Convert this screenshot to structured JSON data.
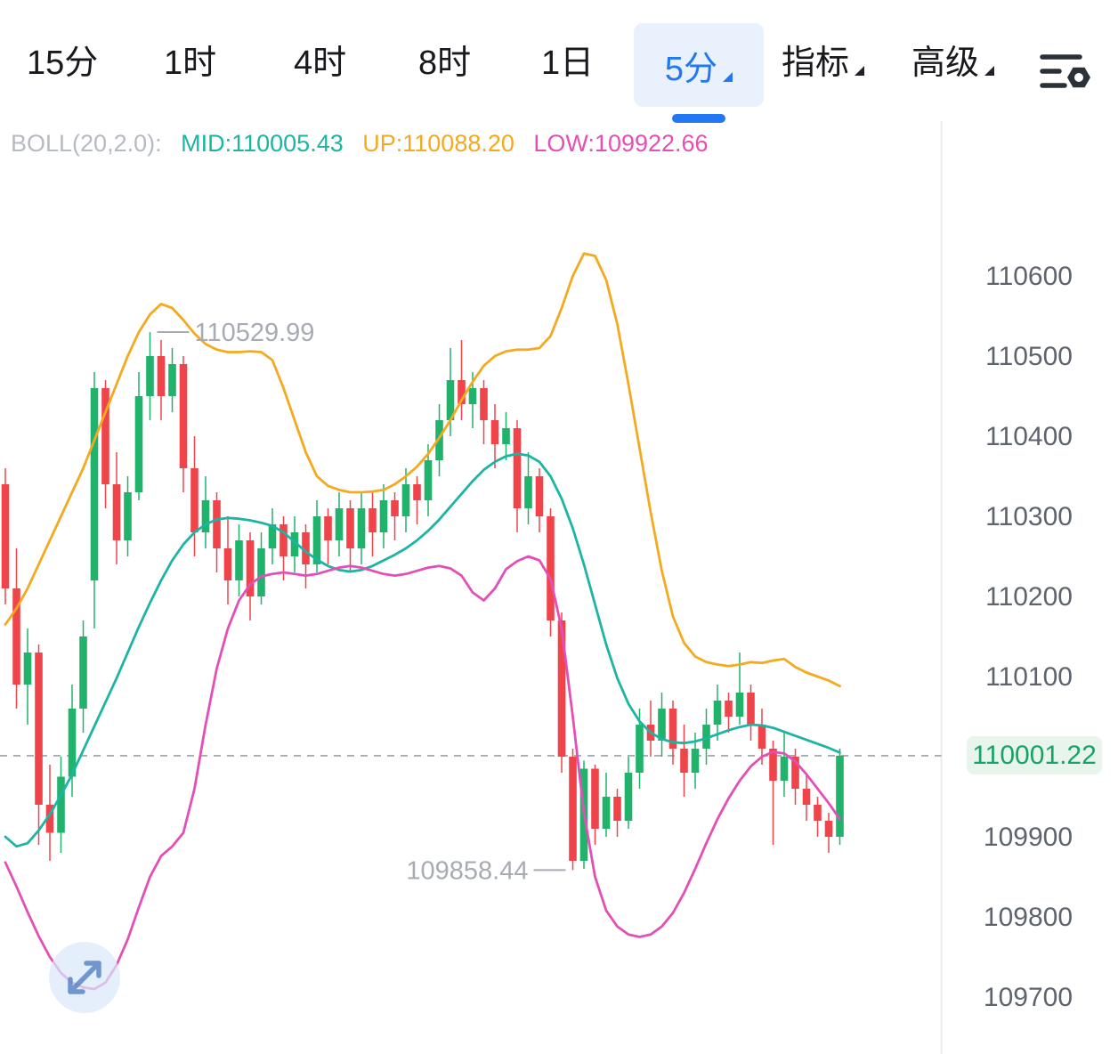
{
  "header": {
    "tabs": [
      {
        "id": "15m",
        "label": "15分",
        "selected": false
      },
      {
        "id": "1h",
        "label": "1时",
        "selected": false
      },
      {
        "id": "4h",
        "label": "4时",
        "selected": false
      },
      {
        "id": "8h",
        "label": "8时",
        "selected": false
      },
      {
        "id": "1d",
        "label": "1日",
        "selected": false
      },
      {
        "id": "5m",
        "label": "5分",
        "selected": true
      },
      {
        "id": "indicators",
        "label": "指标",
        "selected": false
      },
      {
        "id": "advanced",
        "label": "高级",
        "selected": false
      }
    ],
    "settings_icon": "chart-settings-icon"
  },
  "indicator_bar": {
    "boll_label": "BOLL(20,2.0):",
    "mid_label": "MID:110005.43",
    "up_label": "UP:110088.20",
    "low_label": "LOW:109922.66"
  },
  "last_price_badge": {
    "label": "110001.22"
  },
  "chart_data": {
    "type": "candlestick",
    "indicator": "BOLL(20,2.0)",
    "boll_values": {
      "mid": 110005.43,
      "up": 110088.2,
      "low": 109922.66
    },
    "last_price": {
      "text": "110001.22",
      "value": 110001.22
    },
    "high_annotation": {
      "text": "110529.99",
      "value": 110529.99,
      "candle_index": 13
    },
    "low_annotation": {
      "text": "109858.44",
      "value": 109858.44,
      "candle_index": 51
    },
    "y_ticks": [
      110600,
      110500,
      110400,
      110300,
      110200,
      110100,
      109900,
      109800,
      109700
    ],
    "ylim": [
      109650,
      110660
    ],
    "colors": {
      "up_candle": "#21b26c",
      "down_candle": "#ef454a",
      "band_up": "#f3aa1f",
      "band_mid": "#1cb5a3",
      "band_low": "#e44fb7",
      "dashed_line": "#9aa0a8",
      "annotation": "#a7acb4",
      "axis_label": "#5d646d",
      "separator": "#ececec",
      "badge_bg": "#e7f5ec",
      "badge_text": "#17a266"
    },
    "candles": [
      [
        110340,
        110360,
        110190,
        110210
      ],
      [
        110210,
        110260,
        110060,
        110090
      ],
      [
        110090,
        110160,
        110040,
        110130
      ],
      [
        110130,
        110140,
        109890,
        109940
      ],
      [
        109940,
        109990,
        109870,
        109905
      ],
      [
        109905,
        110000,
        109880,
        109975
      ],
      [
        109975,
        110090,
        109950,
        110060
      ],
      [
        110060,
        110170,
        110030,
        110150
      ],
      [
        110220,
        110480,
        110160,
        110460
      ],
      [
        110460,
        110470,
        110310,
        110340
      ],
      [
        110340,
        110380,
        110240,
        110270
      ],
      [
        110270,
        110350,
        110250,
        110330
      ],
      [
        110330,
        110480,
        110320,
        110450
      ],
      [
        110450,
        110529.99,
        110420,
        110500
      ],
      [
        110500,
        110520,
        110420,
        110450
      ],
      [
        110450,
        110510,
        110430,
        110490
      ],
      [
        110490,
        110500,
        110330,
        110360
      ],
      [
        110360,
        110400,
        110250,
        110280
      ],
      [
        110280,
        110350,
        110260,
        110320
      ],
      [
        110320,
        110330,
        110230,
        110260
      ],
      [
        110260,
        110300,
        110190,
        110220
      ],
      [
        110220,
        110290,
        110200,
        110270
      ],
      [
        110270,
        110280,
        110170,
        110200
      ],
      [
        110200,
        110280,
        110190,
        110260
      ],
      [
        110260,
        110310,
        110240,
        110290
      ],
      [
        110290,
        110300,
        110220,
        110250
      ],
      [
        110250,
        110300,
        110230,
        110280
      ],
      [
        110280,
        110290,
        110210,
        110240
      ],
      [
        110240,
        110320,
        110230,
        110300
      ],
      [
        110300,
        110310,
        110240,
        110270
      ],
      [
        110270,
        110330,
        110250,
        110310
      ],
      [
        110310,
        110320,
        110230,
        110260
      ],
      [
        110260,
        110330,
        110240,
        110310
      ],
      [
        110310,
        110330,
        110250,
        110280
      ],
      [
        110280,
        110340,
        110260,
        110320
      ],
      [
        110320,
        110330,
        110270,
        110300
      ],
      [
        110300,
        110360,
        110280,
        110340
      ],
      [
        110340,
        110350,
        110290,
        110320
      ],
      [
        110320,
        110390,
        110300,
        110370
      ],
      [
        110370,
        110440,
        110350,
        110420
      ],
      [
        110420,
        110510,
        110400,
        110470
      ],
      [
        110470,
        110520,
        110420,
        110440
      ],
      [
        110440,
        110480,
        110410,
        110460
      ],
      [
        110460,
        110470,
        110390,
        110420
      ],
      [
        110420,
        110440,
        110360,
        110390
      ],
      [
        110390,
        110430,
        110370,
        110410
      ],
      [
        110410,
        110420,
        110280,
        110310
      ],
      [
        110310,
        110380,
        110290,
        110350
      ],
      [
        110350,
        110360,
        110280,
        110300
      ],
      [
        110300,
        110310,
        110150,
        110170
      ],
      [
        110170,
        110180,
        109980,
        110000
      ],
      [
        110000,
        110010,
        109858.44,
        109870
      ],
      [
        109870,
        109995,
        109860,
        109985
      ],
      [
        109985,
        109990,
        109890,
        109910
      ],
      [
        109910,
        109980,
        109900,
        109950
      ],
      [
        109950,
        109960,
        109900,
        109920
      ],
      [
        109920,
        110000,
        109910,
        109980
      ],
      [
        109980,
        110060,
        109960,
        110040
      ],
      [
        110040,
        110070,
        110000,
        110020
      ],
      [
        110020,
        110080,
        110000,
        110060
      ],
      [
        110060,
        110070,
        109990,
        110010
      ],
      [
        110010,
        110040,
        109950,
        109980
      ],
      [
        109980,
        110030,
        109960,
        110010
      ],
      [
        110010,
        110060,
        109990,
        110040
      ],
      [
        110040,
        110090,
        110020,
        110070
      ],
      [
        110070,
        110080,
        110030,
        110050
      ],
      [
        110050,
        110130,
        110040,
        110080
      ],
      [
        110080,
        110090,
        110020,
        110040
      ],
      [
        110040,
        110060,
        109990,
        110010
      ],
      [
        110010,
        110020,
        109890,
        109970
      ],
      [
        109970,
        110030,
        109950,
        110000
      ],
      [
        110000,
        110010,
        109940,
        109960
      ],
      [
        109960,
        109980,
        109920,
        109940
      ],
      [
        109940,
        109950,
        109900,
        109920
      ],
      [
        109920,
        109930,
        109880,
        109900
      ],
      [
        109900,
        110010,
        109890,
        110001.22
      ]
    ],
    "bands": {
      "up": [
        110165,
        110185,
        110210,
        110240,
        110270,
        110300,
        110330,
        110360,
        110395,
        110430,
        110465,
        110500,
        110530,
        110552,
        110565,
        110560,
        110545,
        110528,
        110515,
        110508,
        110505,
        110505,
        110506,
        110505,
        110495,
        110460,
        110420,
        110380,
        110350,
        110338,
        110333,
        110330,
        110330,
        110331,
        110333,
        110340,
        110350,
        110362,
        110378,
        110398,
        110420,
        110445,
        110468,
        110488,
        110500,
        110506,
        110508,
        110508,
        110510,
        110525,
        110560,
        110600,
        110628,
        110625,
        110595,
        110540,
        110465,
        110385,
        110305,
        110232,
        110175,
        110142,
        110125,
        110118,
        110115,
        110113,
        110115,
        110118,
        110117,
        110120,
        110122,
        110112,
        110105,
        110100,
        110095,
        110088
      ],
      "mid": [
        109900,
        109888,
        109892,
        109908,
        109928,
        109952,
        109978,
        110008,
        110038,
        110068,
        110098,
        110130,
        110162,
        110192,
        110220,
        110245,
        110265,
        110280,
        110290,
        110296,
        110298,
        110297,
        110295,
        110292,
        110288,
        110280,
        110268,
        110256,
        110246,
        110238,
        110233,
        110231,
        110233,
        110238,
        110245,
        110252,
        110260,
        110270,
        110282,
        110296,
        110312,
        110328,
        110344,
        110358,
        110368,
        110375,
        110378,
        110376,
        110368,
        110350,
        110322,
        110285,
        110240,
        110190,
        110140,
        110098,
        110066,
        110044,
        110030,
        110022,
        110018,
        110017,
        110019,
        110023,
        110028,
        110033,
        110037,
        110040,
        110039,
        110036,
        110031,
        110026,
        110021,
        110016,
        110011,
        110005
      ],
      "low": [
        109868,
        109838,
        109806,
        109776,
        109750,
        109730,
        109718,
        109712,
        109710,
        109718,
        109740,
        109772,
        109812,
        109850,
        109876,
        109888,
        109905,
        109960,
        110040,
        110110,
        110160,
        110195,
        110215,
        110225,
        110228,
        110230,
        110228,
        110226,
        110228,
        110232,
        110236,
        110238,
        110236,
        110232,
        110228,
        110226,
        110228,
        110232,
        110236,
        110238,
        110235,
        110226,
        110205,
        110195,
        110210,
        110234,
        110244,
        110250,
        110245,
        110222,
        110160,
        110050,
        109930,
        109850,
        109808,
        109788,
        109778,
        109775,
        109778,
        109788,
        109805,
        109830,
        109860,
        109892,
        109922,
        109948,
        109970,
        109988,
        110000,
        110006,
        110004,
        109994,
        109978,
        109960,
        109942,
        109922
      ]
    }
  }
}
